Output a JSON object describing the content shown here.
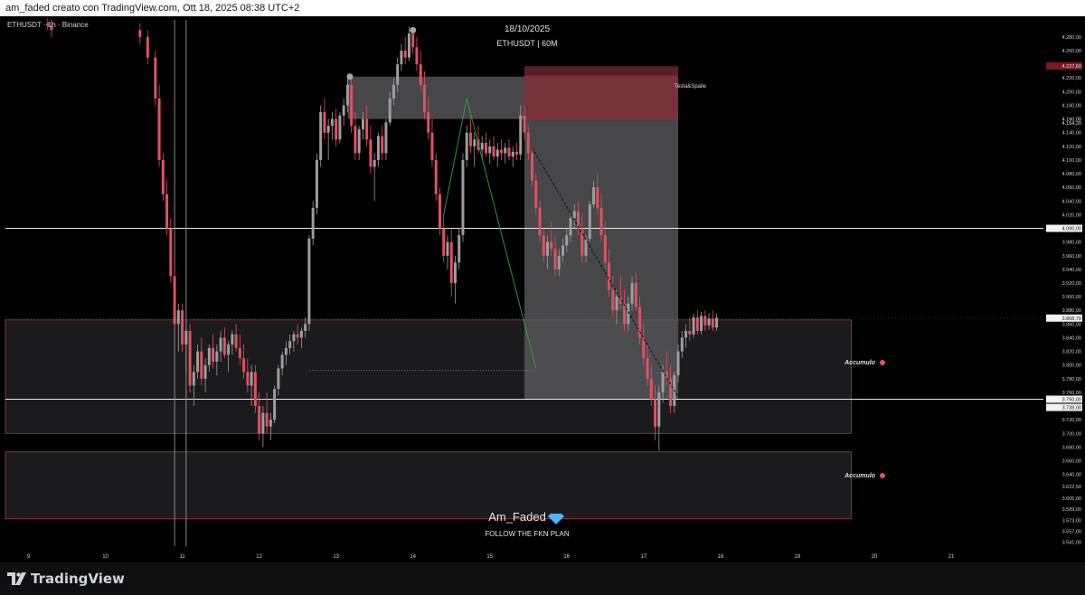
{
  "header": {
    "attribution": "am_faded creato con TradingView.com, Ott 18, 2025 08:38 UTC+2"
  },
  "footer": {
    "brand": "TradingView"
  },
  "colors": {
    "bull": "#9e9e9e",
    "bear": "#e05260",
    "zone_red": "#8e3a44",
    "grey_box": "#5f5f63",
    "green_line": "#3aa13a"
  },
  "chart_data": {
    "type": "candlestick",
    "symbol_label": "ETHUSDT · 1h · Binance",
    "title": "18/10/2025",
    "subtitle": "ETHUSDT | 60M",
    "watermark": "Am_Faded",
    "watermark_tagline": "FOLLOW THE FKN PLAN",
    "ylim": [
      3535,
      4305
    ],
    "x_day_range": [
      8.7,
      22.2
    ],
    "x_ticks": [
      {
        "label": "9",
        "day": 9
      },
      {
        "label": "10",
        "day": 10
      },
      {
        "label": "11",
        "day": 11
      },
      {
        "label": "12",
        "day": 12
      },
      {
        "label": "13",
        "day": 13
      },
      {
        "label": "14",
        "day": 14
      },
      {
        "label": "15",
        "day": 15
      },
      {
        "label": "16",
        "day": 16
      },
      {
        "label": "17",
        "day": 17
      },
      {
        "label": "18",
        "day": 18
      },
      {
        "label": "19",
        "day": 19
      },
      {
        "label": "20",
        "day": 20
      },
      {
        "label": "21",
        "day": 21
      }
    ],
    "y_ticks": [
      "4.280,00",
      "4.260,00",
      "4.240,00",
      "4.220,00",
      "4.200,00",
      "4.180,00",
      "4.140,00",
      "4.120,00",
      "4.100,00",
      "4.080,00",
      "4.060,00",
      "4.040,00",
      "4.020,00",
      "3.980,00",
      "3.960,00",
      "3.940,00",
      "3.920,00",
      "3.900,00",
      "3.880,00",
      "3.860,00",
      "3.840,00",
      "3.820,00",
      "3.800,00",
      "3.780,00",
      "3.760,00",
      "3.740,00",
      "3.720,00",
      "3.700,00",
      "3.680,00",
      "3.660,00",
      "3.640,00",
      "3.622,50",
      "3.605,00",
      "3.589,00",
      "3.573,00",
      "3.557,00",
      "3.541,00"
    ],
    "y_tick_values": [
      4280,
      4260,
      4240,
      4220,
      4200,
      4180,
      4140,
      4120,
      4100,
      4080,
      4060,
      4040,
      4020,
      3980,
      3960,
      3940,
      3920,
      3900,
      3880,
      3860,
      3840,
      3820,
      3800,
      3780,
      3760,
      3740,
      3720,
      3700,
      3680,
      3660,
      3640,
      3622.5,
      3605,
      3589,
      3573,
      3557,
      3541
    ],
    "price_labels": [
      {
        "label": "4.237,60",
        "value": 4237.6,
        "style": "red"
      },
      {
        "label": "4.160,00",
        "value": 4160,
        "style": "plain"
      },
      {
        "label": "4.154,20",
        "value": 4154.2,
        "style": "plain"
      },
      {
        "label": "4.000,00",
        "value": 4000,
        "style": "box"
      },
      {
        "label": "3.868,70",
        "value": 3868.7,
        "style": "box"
      },
      {
        "label": "3.750,00",
        "value": 3750,
        "style": "box"
      },
      {
        "label": "3.738,00",
        "value": 3738,
        "style": "box"
      }
    ],
    "horizontal_lines": [
      4000,
      3750
    ],
    "zones": [
      {
        "label": "Accumulo",
        "top": 3866,
        "bottom": 3700,
        "day_start": 8.7,
        "day_end": 19.7,
        "label_value": 3780
      },
      {
        "label": "Accumulo",
        "top": 3673,
        "bottom": 3575,
        "day_start": 8.7,
        "day_end": 19.7,
        "label_value": 3625
      }
    ],
    "pattern_label": "Testa&Spalle",
    "resistance_box": {
      "top": 4222,
      "bottom": 4160,
      "day_start": 13.15,
      "day_end": 15.45
    },
    "short_position": {
      "day_start": 15.45,
      "day_end": 17.45,
      "stop_top": 4237,
      "entry": 4158,
      "target": 3750
    },
    "support_line": {
      "value": 3792,
      "day_start": 12.65,
      "day_end": 15.6
    },
    "diagonal_path": [
      [
        15.55,
        4118
      ],
      [
        17.45,
        3753
      ]
    ],
    "green_path": [
      [
        14.4,
        4020
      ],
      [
        14.7,
        4190
      ],
      [
        15.6,
        3795
      ]
    ],
    "markers": [
      [
        13.18,
        4222
      ],
      [
        14.0,
        4290
      ]
    ],
    "vertical_lines": [
      10.9,
      11.05
    ],
    "candles": [
      [
        9.25,
        4300,
        4307,
        4290,
        4296
      ],
      [
        9.3,
        4296,
        4305,
        4280,
        4290
      ],
      [
        10.45,
        4290,
        4300,
        4270,
        4280
      ],
      [
        10.55,
        4280,
        4290,
        4240,
        4250
      ],
      [
        10.65,
        4250,
        4260,
        4180,
        4190
      ],
      [
        10.7,
        4190,
        4210,
        4090,
        4100
      ],
      [
        10.75,
        4100,
        4110,
        4040,
        4050
      ],
      [
        10.8,
        4050,
        4070,
        3990,
        4000
      ],
      [
        10.85,
        4000,
        4015,
        3920,
        3930
      ],
      [
        10.9,
        3930,
        3945,
        3850,
        3860
      ],
      [
        10.95,
        3860,
        3890,
        3820,
        3880
      ],
      [
        11.0,
        3880,
        3890,
        3820,
        3830
      ],
      [
        11.05,
        3830,
        3855,
        3790,
        3850
      ],
      [
        11.1,
        3850,
        3860,
        3760,
        3770
      ],
      [
        11.15,
        3770,
        3800,
        3740,
        3790
      ],
      [
        11.2,
        3790,
        3830,
        3780,
        3820
      ],
      [
        11.25,
        3820,
        3840,
        3770,
        3780
      ],
      [
        11.3,
        3780,
        3810,
        3760,
        3800
      ],
      [
        11.35,
        3800,
        3830,
        3790,
        3825
      ],
      [
        11.4,
        3825,
        3845,
        3795,
        3805
      ],
      [
        11.45,
        3805,
        3830,
        3785,
        3820
      ],
      [
        11.5,
        3820,
        3850,
        3805,
        3840
      ],
      [
        11.55,
        3840,
        3855,
        3810,
        3815
      ],
      [
        11.6,
        3815,
        3835,
        3790,
        3830
      ],
      [
        11.65,
        3830,
        3850,
        3815,
        3845
      ],
      [
        11.7,
        3845,
        3860,
        3820,
        3825
      ],
      [
        11.75,
        3825,
        3845,
        3800,
        3810
      ],
      [
        11.8,
        3810,
        3830,
        3780,
        3790
      ],
      [
        11.85,
        3790,
        3810,
        3760,
        3770
      ],
      [
        11.9,
        3770,
        3800,
        3740,
        3790
      ],
      [
        11.95,
        3790,
        3800,
        3730,
        3740
      ],
      [
        12.0,
        3740,
        3760,
        3690,
        3700
      ],
      [
        12.05,
        3700,
        3740,
        3680,
        3730
      ],
      [
        12.1,
        3730,
        3760,
        3700,
        3710
      ],
      [
        12.15,
        3710,
        3730,
        3690,
        3720
      ],
      [
        12.2,
        3720,
        3770,
        3715,
        3765
      ],
      [
        12.25,
        3765,
        3800,
        3755,
        3795
      ],
      [
        12.3,
        3795,
        3820,
        3785,
        3815
      ],
      [
        12.35,
        3815,
        3835,
        3800,
        3825
      ],
      [
        12.4,
        3825,
        3845,
        3815,
        3835
      ],
      [
        12.45,
        3835,
        3850,
        3820,
        3845
      ],
      [
        12.5,
        3845,
        3860,
        3830,
        3840
      ],
      [
        12.55,
        3840,
        3855,
        3825,
        3850
      ],
      [
        12.6,
        3850,
        3870,
        3840,
        3860
      ],
      [
        12.65,
        3860,
        3990,
        3850,
        3985
      ],
      [
        12.7,
        3985,
        4040,
        3975,
        4030
      ],
      [
        12.75,
        4030,
        4110,
        4020,
        4100
      ],
      [
        12.8,
        4100,
        4180,
        4090,
        4170
      ],
      [
        12.85,
        4170,
        4190,
        4130,
        4140
      ],
      [
        12.9,
        4140,
        4160,
        4100,
        4150
      ],
      [
        12.95,
        4150,
        4170,
        4130,
        4160
      ],
      [
        13.0,
        4160,
        4175,
        4120,
        4130
      ],
      [
        13.05,
        4130,
        4170,
        4125,
        4165
      ],
      [
        13.1,
        4165,
        4190,
        4150,
        4180
      ],
      [
        13.15,
        4180,
        4220,
        4170,
        4210
      ],
      [
        13.2,
        4210,
        4220,
        4140,
        4150
      ],
      [
        13.25,
        4150,
        4170,
        4100,
        4110
      ],
      [
        13.3,
        4110,
        4150,
        4100,
        4145
      ],
      [
        13.35,
        4145,
        4170,
        4130,
        4160
      ],
      [
        13.4,
        4160,
        4180,
        4120,
        4130
      ],
      [
        13.45,
        4130,
        4150,
        4080,
        4090
      ],
      [
        13.5,
        4090,
        4110,
        4040,
        4100
      ],
      [
        13.55,
        4100,
        4140,
        4090,
        4135
      ],
      [
        13.6,
        4135,
        4150,
        4100,
        4110
      ],
      [
        13.65,
        4110,
        4160,
        4100,
        4155
      ],
      [
        13.7,
        4155,
        4200,
        4150,
        4190
      ],
      [
        13.75,
        4190,
        4220,
        4180,
        4210
      ],
      [
        13.8,
        4210,
        4250,
        4200,
        4240
      ],
      [
        13.85,
        4240,
        4270,
        4230,
        4260
      ],
      [
        13.9,
        4260,
        4280,
        4240,
        4250
      ],
      [
        13.95,
        4250,
        4295,
        4245,
        4285
      ],
      [
        14.0,
        4285,
        4293,
        4255,
        4265
      ],
      [
        14.05,
        4265,
        4280,
        4230,
        4240
      ],
      [
        14.1,
        4240,
        4260,
        4200,
        4210
      ],
      [
        14.15,
        4210,
        4230,
        4160,
        4170
      ],
      [
        14.2,
        4170,
        4190,
        4130,
        4140
      ],
      [
        14.25,
        4140,
        4160,
        4090,
        4100
      ],
      [
        14.3,
        4100,
        4110,
        4040,
        4050
      ],
      [
        14.35,
        4050,
        4060,
        3990,
        4000
      ],
      [
        14.4,
        4000,
        4020,
        3950,
        3960
      ],
      [
        14.45,
        3960,
        3990,
        3940,
        3980
      ],
      [
        14.5,
        3980,
        4000,
        3900,
        3920
      ],
      [
        14.55,
        3920,
        3960,
        3890,
        3950
      ],
      [
        14.6,
        3950,
        4000,
        3940,
        3990
      ],
      [
        14.65,
        3990,
        4110,
        3980,
        4100
      ],
      [
        14.7,
        4100,
        4150,
        4090,
        4140
      ],
      [
        14.75,
        4140,
        4160,
        4110,
        4120
      ],
      [
        14.8,
        4120,
        4140,
        4090,
        4130
      ],
      [
        14.85,
        4130,
        4150,
        4110,
        4115
      ],
      [
        14.9,
        4115,
        4135,
        4100,
        4125
      ],
      [
        14.95,
        4125,
        4140,
        4105,
        4110
      ],
      [
        15.0,
        4110,
        4130,
        4095,
        4120
      ],
      [
        15.05,
        4120,
        4135,
        4100,
        4105
      ],
      [
        15.1,
        4105,
        4125,
        4090,
        4115
      ],
      [
        15.15,
        4115,
        4130,
        4100,
        4110
      ],
      [
        15.2,
        4110,
        4125,
        4095,
        4118
      ],
      [
        15.25,
        4118,
        4130,
        4100,
        4105
      ],
      [
        15.3,
        4105,
        4120,
        4090,
        4112
      ],
      [
        15.35,
        4112,
        4125,
        4100,
        4108
      ],
      [
        15.4,
        4108,
        4180,
        4100,
        4165
      ],
      [
        15.45,
        4165,
        4180,
        4130,
        4140
      ],
      [
        15.5,
        4140,
        4150,
        4100,
        4110
      ],
      [
        15.55,
        4110,
        4120,
        4060,
        4070
      ],
      [
        15.6,
        4070,
        4080,
        4020,
        4030
      ],
      [
        15.65,
        4030,
        4040,
        3980,
        3990
      ],
      [
        15.7,
        3990,
        4000,
        3950,
        3960
      ],
      [
        15.75,
        3960,
        3990,
        3940,
        3980
      ],
      [
        15.8,
        3980,
        4010,
        3960,
        3970
      ],
      [
        15.85,
        3970,
        3990,
        3930,
        3940
      ],
      [
        15.9,
        3940,
        3970,
        3930,
        3960
      ],
      [
        15.95,
        3960,
        3985,
        3950,
        3975
      ],
      [
        16.0,
        3975,
        4000,
        3965,
        3990
      ],
      [
        16.05,
        3990,
        4020,
        3980,
        4015
      ],
      [
        16.1,
        4015,
        4035,
        4000,
        4025
      ],
      [
        16.15,
        4025,
        4040,
        3990,
        4000
      ],
      [
        16.2,
        4000,
        4020,
        3950,
        3960
      ],
      [
        16.25,
        3960,
        3990,
        3950,
        3985
      ],
      [
        16.3,
        3985,
        4040,
        3980,
        4035
      ],
      [
        16.35,
        4035,
        4070,
        4030,
        4060
      ],
      [
        16.4,
        4060,
        4080,
        4020,
        4030
      ],
      [
        16.45,
        4030,
        4050,
        3980,
        3990
      ],
      [
        16.5,
        3990,
        4010,
        3940,
        3950
      ],
      [
        16.55,
        3950,
        3970,
        3900,
        3910
      ],
      [
        16.6,
        3910,
        3930,
        3870,
        3880
      ],
      [
        16.65,
        3880,
        3910,
        3860,
        3900
      ],
      [
        16.7,
        3900,
        3930,
        3880,
        3890
      ],
      [
        16.75,
        3890,
        3910,
        3850,
        3860
      ],
      [
        16.8,
        3860,
        3900,
        3850,
        3890
      ],
      [
        16.85,
        3890,
        3930,
        3880,
        3920
      ],
      [
        16.9,
        3920,
        3935,
        3880,
        3885
      ],
      [
        16.95,
        3885,
        3900,
        3830,
        3840
      ],
      [
        17.0,
        3840,
        3860,
        3800,
        3810
      ],
      [
        17.05,
        3810,
        3830,
        3770,
        3780
      ],
      [
        17.1,
        3780,
        3800,
        3740,
        3750
      ],
      [
        17.15,
        3750,
        3770,
        3690,
        3710
      ],
      [
        17.2,
        3710,
        3770,
        3675,
        3760
      ],
      [
        17.25,
        3760,
        3800,
        3745,
        3790
      ],
      [
        17.3,
        3790,
        3820,
        3770,
        3780
      ],
      [
        17.35,
        3780,
        3800,
        3730,
        3740
      ],
      [
        17.4,
        3740,
        3790,
        3730,
        3785
      ],
      [
        17.45,
        3785,
        3830,
        3775,
        3820
      ],
      [
        17.5,
        3820,
        3850,
        3810,
        3840
      ],
      [
        17.55,
        3840,
        3860,
        3825,
        3850
      ],
      [
        17.6,
        3850,
        3870,
        3835,
        3845
      ],
      [
        17.65,
        3845,
        3875,
        3840,
        3870
      ],
      [
        17.7,
        3870,
        3880,
        3845,
        3850
      ],
      [
        17.75,
        3850,
        3878,
        3845,
        3872
      ],
      [
        17.8,
        3872,
        3880,
        3850,
        3858
      ],
      [
        17.85,
        3858,
        3876,
        3852,
        3868
      ],
      [
        17.9,
        3868,
        3880,
        3850,
        3855
      ],
      [
        17.95,
        3855,
        3875,
        3850,
        3869
      ]
    ]
  }
}
